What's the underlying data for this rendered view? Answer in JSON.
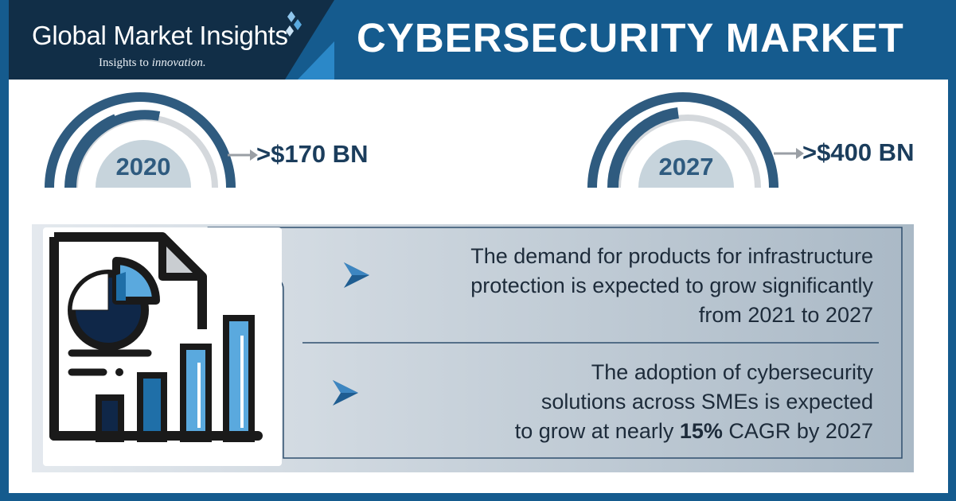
{
  "brand": {
    "name": "Global Market Insights",
    "tagline_prefix": "Insights to ",
    "tagline_emphasis": "innovation."
  },
  "header": {
    "title": "CYBERSECURITY MARKET"
  },
  "stats": [
    {
      "year": "2020",
      "value": ">$170 BN"
    },
    {
      "year": "2027",
      "value": ">$400 BN"
    }
  ],
  "points": [
    {
      "lines": [
        "The demand for products for infrastructure",
        "protection is expected to grow significantly",
        "from 2021 to 2027"
      ]
    },
    {
      "lines": [
        "The adoption of cybersecurity",
        "solutions across SMEs is expected"
      ],
      "last_line_prefix": "to grow at nearly ",
      "last_line_bold": "15%",
      "last_line_suffix": " CAGR by 2027"
    }
  ],
  "colors": {
    "header_blue": "#155b8e",
    "logo_navy": "#112e47",
    "gauge_dark": "#2f5b7f",
    "gauge_gray": "#d4d8dc",
    "gauge_fill": "#c7d4dc",
    "text_dark": "#1b3d5c",
    "accent_light_blue": "#5aa9de",
    "accent_mid_blue": "#1f6fa8"
  }
}
